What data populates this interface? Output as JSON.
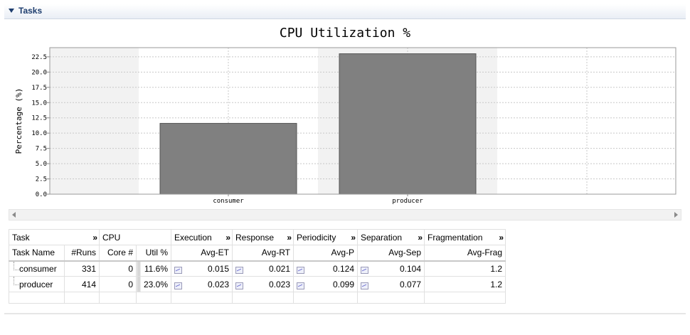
{
  "section": {
    "title": "Tasks"
  },
  "chart_data": {
    "type": "bar",
    "title": "CPU Utilization %",
    "ylabel": "Percentage (%)",
    "xlabel": "",
    "categories": [
      "consumer",
      "producer"
    ],
    "values": [
      11.6,
      23.0
    ],
    "ylim": [
      0,
      24
    ],
    "yticks": [
      "0.0",
      "2.5",
      "5.0",
      "7.5",
      "10.0",
      "12.5",
      "15.0",
      "17.5",
      "20.0",
      "22.5"
    ],
    "grid": true,
    "bar_color": "#808080"
  },
  "table": {
    "group_headers": [
      {
        "label": "Task",
        "colspan": 2,
        "chevron": "»"
      },
      {
        "label": "CPU",
        "colspan": 2,
        "chevron": ""
      },
      {
        "label": "Execution",
        "colspan": 1,
        "chevron": "»"
      },
      {
        "label": "Response",
        "colspan": 1,
        "chevron": "»"
      },
      {
        "label": "Periodicity",
        "colspan": 1,
        "chevron": "»"
      },
      {
        "label": "Separation",
        "colspan": 1,
        "chevron": "»"
      },
      {
        "label": "Fragmentation",
        "colspan": 1,
        "chevron": "»"
      }
    ],
    "columns": [
      "Task Name",
      "#Runs",
      "Core #",
      "Util %",
      "Avg-ET",
      "Avg-RT",
      "Avg-P",
      "Avg-Sep",
      "Avg-Frag"
    ],
    "rows": [
      [
        "consumer",
        "331",
        "0",
        "11.6%",
        "0.015",
        "0.021",
        "0.124",
        "0.104",
        "1.2"
      ],
      [
        "producer",
        "414",
        "0",
        "23.0%",
        "0.023",
        "0.023",
        "0.099",
        "0.077",
        "1.2"
      ]
    ]
  }
}
